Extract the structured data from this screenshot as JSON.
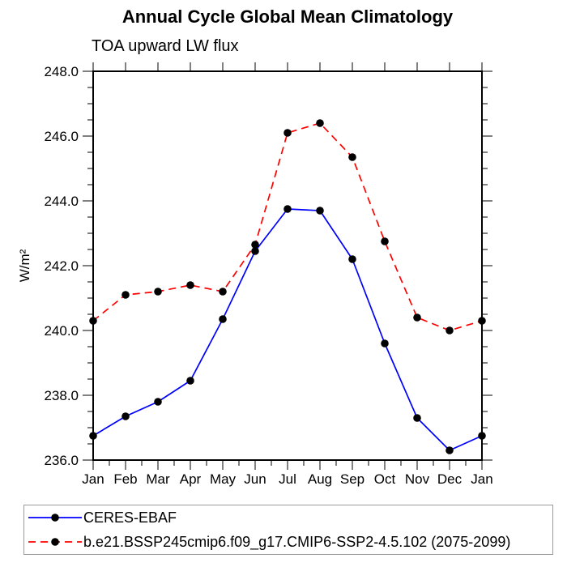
{
  "title": "Annual Cycle Global Mean Climatology",
  "subtitle": "TOA upward LW flux",
  "chart_data": {
    "type": "line",
    "categories": [
      "Jan",
      "Feb",
      "Mar",
      "Apr",
      "May",
      "Jun",
      "Jul",
      "Aug",
      "Sep",
      "Oct",
      "Nov",
      "Dec",
      "Jan"
    ],
    "series": [
      {
        "name": "CERES-EBAF",
        "color": "#0000ff",
        "line_style": "solid",
        "marker": "filled-circle",
        "marker_color": "#000000",
        "values": [
          236.75,
          237.35,
          237.8,
          238.45,
          240.35,
          242.45,
          243.75,
          243.7,
          242.2,
          239.6,
          237.3,
          236.3,
          236.75
        ]
      },
      {
        "name": "b.e21.BSSP245cmip6.f09_g17.CMIP6-SSP2-4.5.102 (2075-2099)",
        "color": "#ff0000",
        "line_style": "dashed",
        "marker": "filled-circle",
        "marker_color": "#000000",
        "values": [
          240.3,
          241.1,
          241.2,
          241.4,
          241.2,
          242.65,
          246.1,
          246.4,
          245.35,
          242.75,
          240.4,
          240.0,
          240.3
        ]
      }
    ],
    "xlabel": "",
    "ylabel": "W/m²",
    "ylim": [
      236.0,
      248.0
    ],
    "ytick_major_step": 2.0,
    "ytick_minor_step": 0.5,
    "ytick_labels": [
      "236.0",
      "238.0",
      "240.0",
      "242.0",
      "244.0",
      "246.0",
      "248.0"
    ],
    "grid": false,
    "legend_position": "bottom-left",
    "axis_color": "#000000"
  }
}
